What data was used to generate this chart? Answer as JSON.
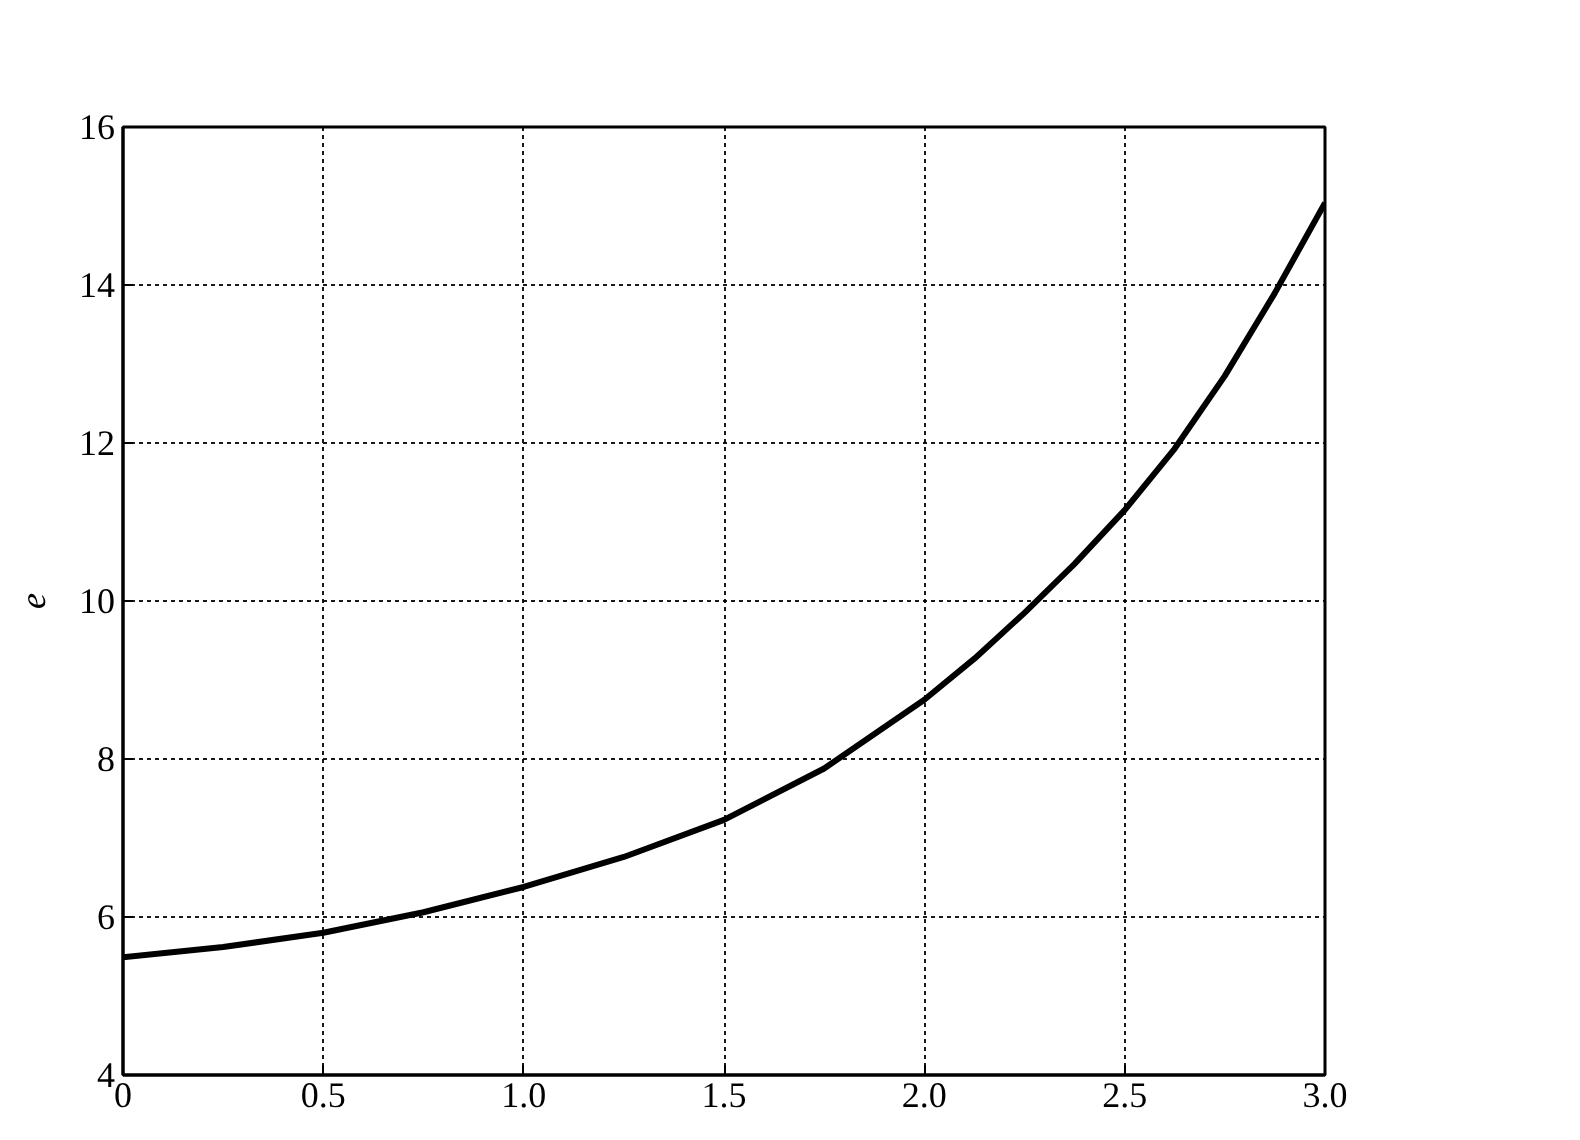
{
  "chart_data": {
    "type": "line",
    "ylabel": "e",
    "x": [
      0,
      0.25,
      0.5,
      0.75,
      1.0,
      1.25,
      1.5,
      1.75,
      2.0,
      2.125,
      2.25,
      2.375,
      2.5,
      2.625,
      2.75,
      2.875,
      3.0
    ],
    "series": [
      {
        "color": "#000000",
        "values": [
          5.49,
          5.62,
          5.8,
          6.06,
          6.38,
          6.76,
          7.23,
          7.88,
          8.75,
          9.27,
          9.85,
          10.47,
          11.15,
          11.93,
          12.85,
          13.9,
          15.04
        ]
      }
    ],
    "xlim": [
      0,
      3
    ],
    "ylim": [
      4,
      16
    ],
    "xticks": [
      0,
      0.5,
      {
        "value": 1,
        "label": "1.0"
      },
      1.5,
      {
        "value": 2,
        "label": "2.0"
      },
      2.5,
      {
        "value": 3,
        "label": "3.0"
      }
    ],
    "yticks": [
      4,
      6,
      8,
      10,
      12,
      14,
      16
    ],
    "grid": true,
    "marker": "none",
    "line_style": "solid"
  }
}
